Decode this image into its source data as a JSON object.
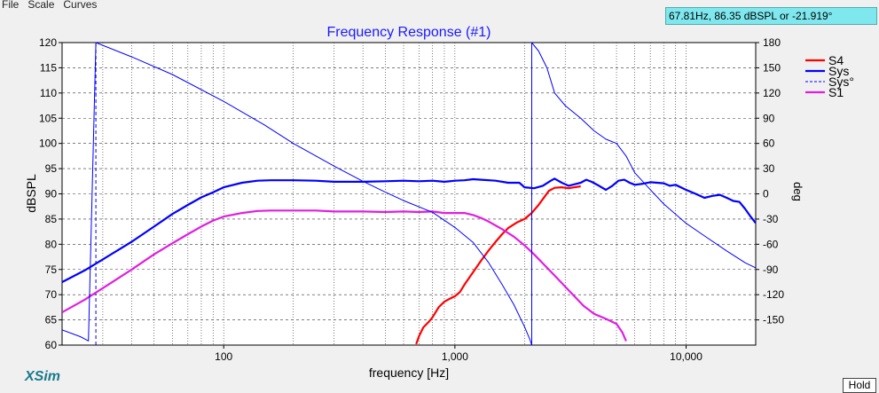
{
  "menu": [
    "File",
    "Scale",
    "Curves"
  ],
  "readout": "67.81Hz, 86.35 dBSPL or -21.919°",
  "brand": "XSim",
  "hold_label": "Hold",
  "chart_data": {
    "type": "line",
    "title": "Frequency Response (#1)",
    "xlabel": "frequency [Hz]",
    "ylabel": "dBSPL",
    "y2label": "deg",
    "xscale": "log",
    "xlim": [
      20,
      20000
    ],
    "ylim": [
      60,
      120
    ],
    "y2lim": [
      -180,
      180
    ],
    "x_ticks": [
      100,
      1000,
      10000
    ],
    "x_tick_labels": [
      "100",
      "1,000",
      "10,000"
    ],
    "y_ticks": [
      60,
      65,
      70,
      75,
      80,
      85,
      90,
      95,
      100,
      105,
      110,
      115,
      120
    ],
    "y2_ticks": [
      -150,
      -120,
      -90,
      -60,
      -30,
      0,
      30,
      60,
      90,
      120,
      150,
      180
    ],
    "grid": true,
    "legend_position": "right",
    "series": [
      {
        "name": "S4",
        "color": "#ff0000",
        "width": 2.2,
        "dash": "",
        "axis": "left",
        "points": [
          [
            680,
            60.2
          ],
          [
            700,
            61.8
          ],
          [
            730,
            63.5
          ],
          [
            770,
            64.6
          ],
          [
            800,
            65.5
          ],
          [
            850,
            67.5
          ],
          [
            900,
            68.6
          ],
          [
            950,
            69.2
          ],
          [
            1000,
            69.7
          ],
          [
            1050,
            70.5
          ],
          [
            1100,
            72
          ],
          [
            1200,
            74.5
          ],
          [
            1300,
            76.8
          ],
          [
            1400,
            78.8
          ],
          [
            1500,
            80.5
          ],
          [
            1600,
            82
          ],
          [
            1700,
            83.2
          ],
          [
            1850,
            84.3
          ],
          [
            2000,
            85
          ],
          [
            2150,
            86.2
          ],
          [
            2300,
            87.8
          ],
          [
            2450,
            89.5
          ],
          [
            2550,
            90.6
          ],
          [
            2700,
            91.2
          ],
          [
            2900,
            91.3
          ],
          [
            3100,
            91.1
          ],
          [
            3300,
            91.3
          ],
          [
            3500,
            91.5
          ]
        ]
      },
      {
        "name": "Sys",
        "color": "#0000ff",
        "width": 2.2,
        "dash": "",
        "axis": "left",
        "points": [
          [
            20,
            72.5
          ],
          [
            25,
            74.8
          ],
          [
            30,
            77
          ],
          [
            40,
            80.5
          ],
          [
            50,
            83.5
          ],
          [
            60,
            86
          ],
          [
            70,
            87.8
          ],
          [
            80,
            89.3
          ],
          [
            90,
            90.3
          ],
          [
            100,
            91.3
          ],
          [
            120,
            92.2
          ],
          [
            140,
            92.6
          ],
          [
            160,
            92.7
          ],
          [
            200,
            92.7
          ],
          [
            250,
            92.6
          ],
          [
            300,
            92.4
          ],
          [
            400,
            92.4
          ],
          [
            500,
            92.5
          ],
          [
            600,
            92.6
          ],
          [
            700,
            92.5
          ],
          [
            800,
            92.6
          ],
          [
            900,
            92.4
          ],
          [
            1000,
            92.6
          ],
          [
            1100,
            92.7
          ],
          [
            1200,
            92.9
          ],
          [
            1300,
            92.8
          ],
          [
            1500,
            92.6
          ],
          [
            1700,
            92.2
          ],
          [
            1900,
            92.2
          ],
          [
            2000,
            91.3
          ],
          [
            2200,
            91.1
          ],
          [
            2400,
            91.6
          ],
          [
            2600,
            92.6
          ],
          [
            2700,
            93
          ],
          [
            2900,
            92.2
          ],
          [
            3100,
            91.6
          ],
          [
            3300,
            91.9
          ],
          [
            3500,
            92.2
          ],
          [
            3700,
            92.8
          ],
          [
            3900,
            92.4
          ],
          [
            4200,
            91.6
          ],
          [
            4500,
            90.8
          ],
          [
            4800,
            91.6
          ],
          [
            5100,
            92.6
          ],
          [
            5400,
            92.8
          ],
          [
            5700,
            92.2
          ],
          [
            6000,
            91.8
          ],
          [
            6500,
            92
          ],
          [
            7000,
            92.3
          ],
          [
            7500,
            92.2
          ],
          [
            8000,
            92.1
          ],
          [
            8500,
            91.6
          ],
          [
            9000,
            91.8
          ],
          [
            10000,
            90.8
          ],
          [
            11000,
            90
          ],
          [
            12000,
            89.2
          ],
          [
            13000,
            89.6
          ],
          [
            14000,
            89.8
          ],
          [
            15000,
            89.2
          ],
          [
            16000,
            88.6
          ],
          [
            17000,
            88.4
          ],
          [
            18000,
            87
          ],
          [
            19000,
            85.5
          ],
          [
            20000,
            84.2
          ]
        ]
      },
      {
        "name": "Sys°",
        "color": "#0000ff",
        "width": 1,
        "dash": "4 3",
        "axis": "right",
        "points": [
          [
            28,
            -180
          ],
          [
            28,
            180
          ],
          null,
          [
            2150,
            -180
          ],
          [
            2150,
            180
          ]
        ]
      },
      {
        "name": "S1",
        "color": "#e01ee0",
        "width": 2.2,
        "dash": "",
        "axis": "left",
        "points": [
          [
            20,
            66.5
          ],
          [
            25,
            69
          ],
          [
            30,
            71.3
          ],
          [
            40,
            75
          ],
          [
            50,
            78
          ],
          [
            60,
            80.2
          ],
          [
            70,
            82
          ],
          [
            80,
            83.5
          ],
          [
            90,
            84.7
          ],
          [
            100,
            85.5
          ],
          [
            120,
            86.2
          ],
          [
            140,
            86.6
          ],
          [
            160,
            86.7
          ],
          [
            200,
            86.7
          ],
          [
            250,
            86.7
          ],
          [
            300,
            86.5
          ],
          [
            400,
            86.5
          ],
          [
            500,
            86.4
          ],
          [
            600,
            86.5
          ],
          [
            700,
            86.4
          ],
          [
            800,
            86.5
          ],
          [
            900,
            86.2
          ],
          [
            1000,
            86.2
          ],
          [
            1100,
            86.2
          ],
          [
            1200,
            85.8
          ],
          [
            1300,
            85.2
          ],
          [
            1400,
            84.5
          ],
          [
            1600,
            83
          ],
          [
            1800,
            81.5
          ],
          [
            2000,
            79.8
          ],
          [
            2200,
            78
          ],
          [
            2400,
            76.2
          ],
          [
            2700,
            73.8
          ],
          [
            3000,
            71.6
          ],
          [
            3300,
            69.6
          ],
          [
            3600,
            67.8
          ],
          [
            4000,
            66.2
          ],
          [
            4500,
            65.2
          ],
          [
            5000,
            64.2
          ],
          [
            5300,
            62.5
          ],
          [
            5500,
            60.8
          ]
        ]
      },
      {
        "name": "",
        "color": "#0000ff",
        "width": 1,
        "dash": "",
        "axis": "right",
        "legend": false,
        "points": [
          [
            20,
            -162
          ],
          [
            24,
            -170
          ],
          [
            26,
            -175
          ],
          [
            28,
            180
          ],
          [
            40,
            163
          ],
          [
            60,
            142
          ],
          [
            100,
            110
          ],
          [
            150,
            82
          ],
          [
            200,
            60
          ],
          [
            300,
            33
          ],
          [
            400,
            15
          ],
          [
            500,
            2
          ],
          [
            600,
            -8
          ],
          [
            800,
            -22
          ],
          [
            1000,
            -40
          ],
          [
            1200,
            -58
          ],
          [
            1400,
            -82
          ],
          [
            1600,
            -108
          ],
          [
            1800,
            -132
          ],
          [
            2000,
            -158
          ],
          [
            2100,
            -172
          ],
          [
            2150,
            -180
          ],
          [
            2150,
            180
          ],
          [
            2300,
            170
          ],
          [
            2500,
            150
          ],
          [
            2700,
            120
          ],
          [
            3000,
            105
          ],
          [
            3500,
            90
          ],
          [
            4000,
            75
          ],
          [
            4500,
            65
          ],
          [
            5000,
            60
          ],
          [
            5500,
            45
          ],
          [
            6000,
            25
          ],
          [
            7000,
            5
          ],
          [
            8000,
            -12
          ],
          [
            10000,
            -35
          ],
          [
            12000,
            -50
          ],
          [
            15000,
            -68
          ],
          [
            18000,
            -82
          ],
          [
            20000,
            -88
          ]
        ]
      }
    ]
  }
}
